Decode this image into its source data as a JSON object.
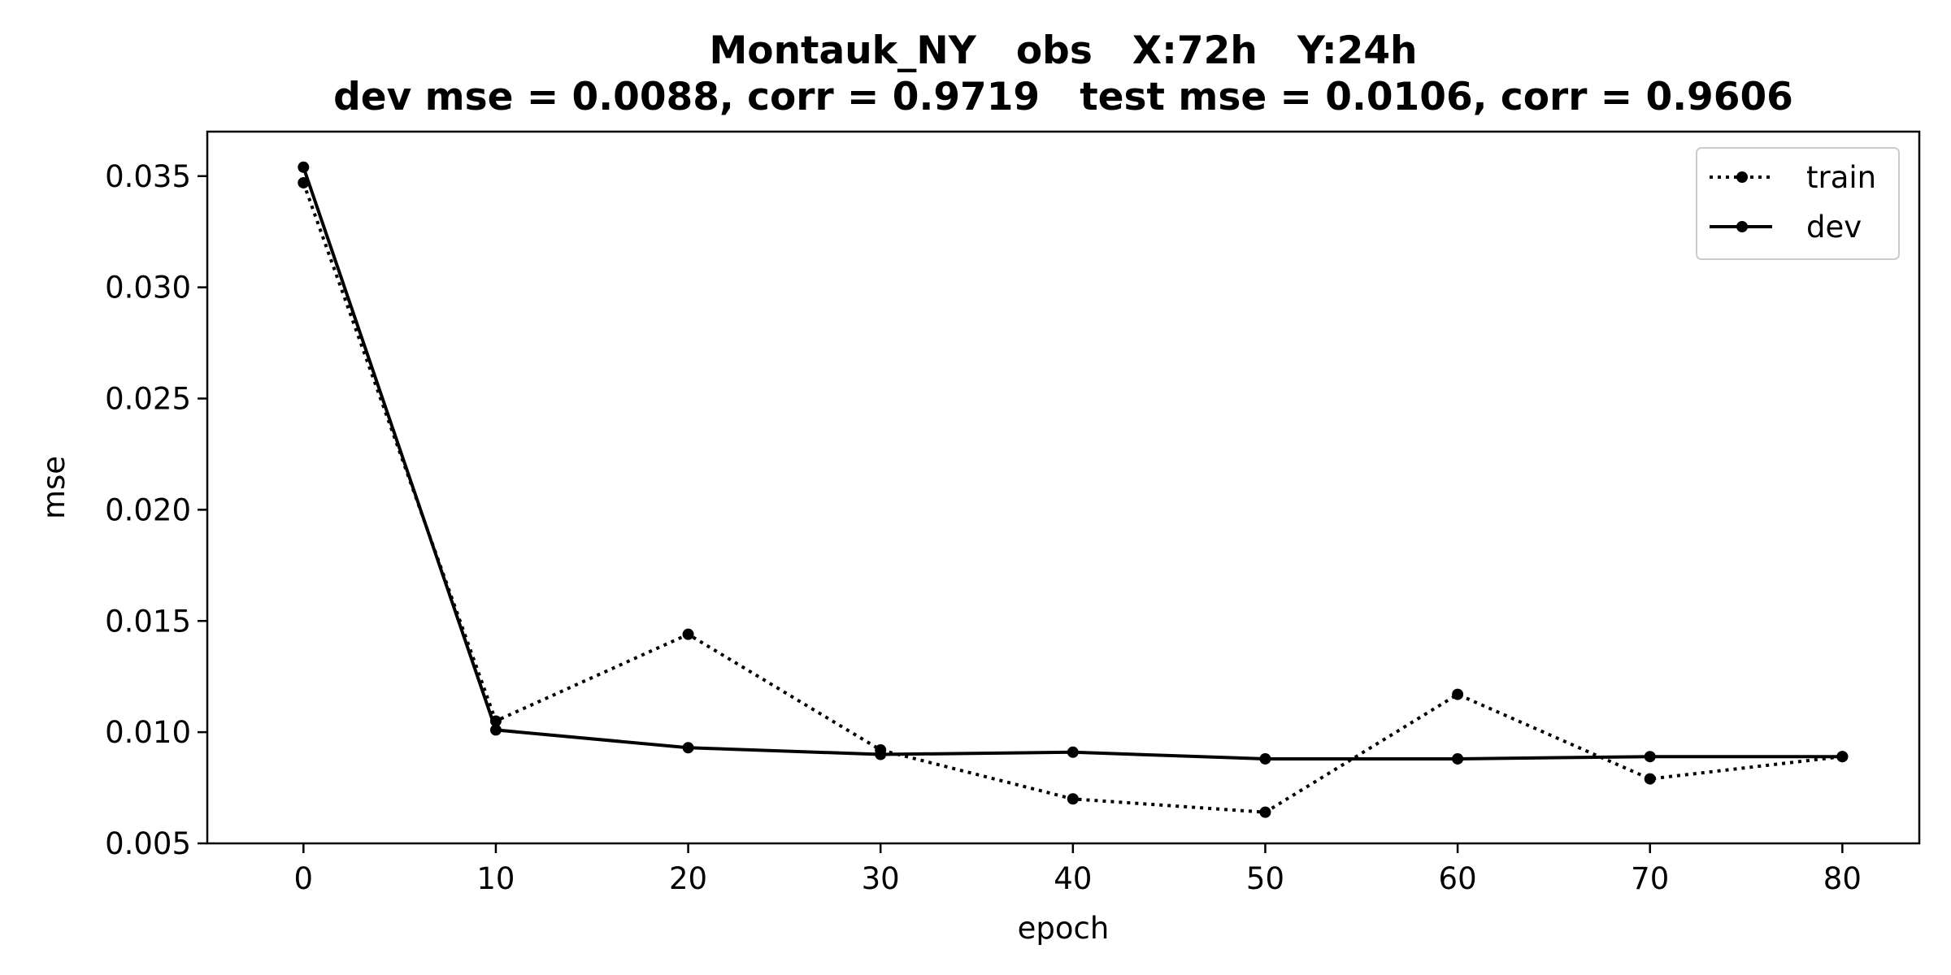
{
  "chart_data": {
    "type": "line",
    "title": "Montauk_NY   obs   X:72h   Y:24h",
    "subtitle": "dev mse = 0.0088, corr = 0.9719   test mse = 0.0106, corr = 0.9606",
    "xlabel": "epoch",
    "ylabel": "mse",
    "xlim": [
      -5,
      84
    ],
    "ylim": [
      0.005,
      0.037
    ],
    "xticks": [
      0,
      10,
      20,
      30,
      40,
      50,
      60,
      70,
      80
    ],
    "yticks": [
      0.005,
      0.01,
      0.015,
      0.02,
      0.025,
      0.03,
      0.035
    ],
    "ytick_labels": [
      "0.005",
      "0.010",
      "0.015",
      "0.020",
      "0.025",
      "0.030",
      "0.035"
    ],
    "grid": false,
    "legend_position": "top-right",
    "x": [
      0,
      10,
      20,
      30,
      40,
      50,
      60,
      70,
      80
    ],
    "series": [
      {
        "name": "train",
        "style": "dotted",
        "color": "#000000",
        "values": [
          0.0347,
          0.0105,
          0.0144,
          0.0092,
          0.007,
          0.0064,
          0.0117,
          0.0079,
          0.0089
        ]
      },
      {
        "name": "dev",
        "style": "solid",
        "color": "#000000",
        "values": [
          0.0354,
          0.0101,
          0.0093,
          0.009,
          0.0091,
          0.0088,
          0.0088,
          0.0089,
          0.0089
        ]
      }
    ]
  }
}
